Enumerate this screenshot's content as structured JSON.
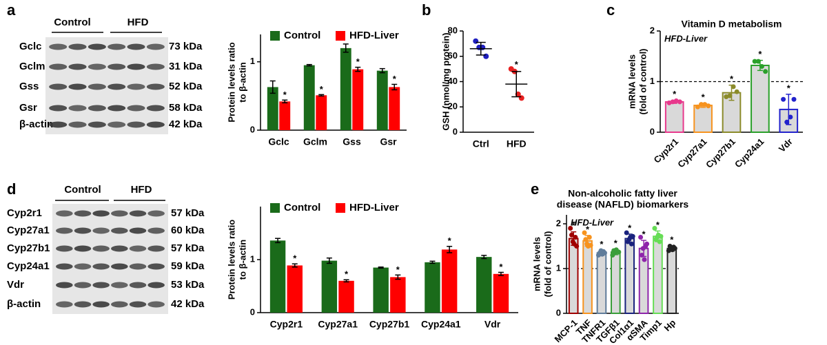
{
  "blots": [
    {
      "panel": "a",
      "groups": [
        "Control",
        "HFD"
      ],
      "proteins": [
        "Gclc",
        "Gclm",
        "Gss",
        "Gsr",
        "β-actin"
      ],
      "sizes": [
        "73 kDa",
        "31 kDa",
        "52 kDa",
        "58 kDa",
        "42 kDa"
      ]
    },
    {
      "panel": "d",
      "groups": [
        "Control",
        "HFD"
      ],
      "proteins": [
        "Cyp2r1",
        "Cyp27a1",
        "Cyp27b1",
        "Cyp24a1",
        "Vdr",
        "β-actin"
      ],
      "sizes": [
        "57 kDa",
        "60 kDa",
        "57 kDa",
        "59 kDa",
        "53 kDa",
        "42 kDa"
      ]
    }
  ],
  "chart_data": [
    {
      "type": "bar",
      "ylabel": [
        "Protein levels ratio",
        "to β-actin"
      ],
      "categories": [
        "Gclc",
        "Gclm",
        "Gss",
        "Gsr"
      ],
      "series": [
        {
          "name": "Control",
          "color": "#1a6b1a",
          "values": [
            0.63,
            0.95,
            1.2,
            0.87
          ],
          "errors": [
            0.09,
            0.01,
            0.06,
            0.03
          ]
        },
        {
          "name": "HFD-Liver",
          "color": "#ff0000",
          "values": [
            0.42,
            0.51,
            0.89,
            0.63
          ],
          "errors": [
            0.02,
            0.01,
            0.03,
            0.04
          ],
          "sig": [
            "*",
            "*",
            "*",
            "*"
          ]
        }
      ],
      "ylim": [
        0,
        1.4
      ],
      "yticks": [
        0,
        1
      ],
      "legend": "top"
    },
    {
      "type": "dot",
      "panel": "b",
      "ylabel": [
        "GSH (nmol/mg protein)"
      ],
      "categories": [
        "Ctrl",
        "HFD"
      ],
      "colors": [
        "#1f1fbf",
        "#e82020"
      ],
      "points": [
        [
          72,
          67,
          67,
          60
        ],
        [
          50,
          48,
          30,
          27
        ]
      ],
      "means": [
        66,
        38
      ],
      "errors": [
        5,
        10
      ],
      "sig": [
        null,
        "*"
      ],
      "ylim": [
        0,
        80
      ],
      "yticks": [
        0,
        20,
        40,
        60,
        80
      ]
    },
    {
      "type": "bar",
      "panel": "c",
      "title": [
        "Vitamin D metabolism"
      ],
      "annotation": "HFD-Liver",
      "ylabel": [
        "mRNA levels",
        "(fold of control)"
      ],
      "categories": [
        "Cyp2r1",
        "Cyp27a1",
        "Cyp27b1",
        "Cyp24a1",
        "Vdr"
      ],
      "colors": [
        "#e8388c",
        "#f7931e",
        "#8b8b2a",
        "#2aa02a",
        "#2222cc"
      ],
      "bar_fill": "#d9d9d9",
      "values": [
        0.6,
        0.53,
        0.78,
        1.32,
        0.45
      ],
      "errors": [
        0.03,
        0.04,
        0.15,
        0.1,
        0.3
      ],
      "points": [
        [
          0.58,
          0.6,
          0.62,
          0.6
        ],
        [
          0.5,
          0.55,
          0.55,
          0.52
        ],
        [
          0.7,
          0.72,
          0.9,
          0.8
        ],
        [
          1.4,
          1.4,
          1.3,
          1.2
        ],
        [
          0.65,
          0.2,
          0.3,
          0.65
        ]
      ],
      "sig": [
        "*",
        "*",
        "*",
        "*",
        "*"
      ],
      "reference_line": 1,
      "ylim": [
        0,
        2
      ],
      "yticks": [
        0,
        1,
        2
      ]
    },
    {
      "type": "bar",
      "ylabel": [
        "Protein levels ratio",
        "to β-actin"
      ],
      "categories": [
        "Cyp2r1",
        "Cyp27a1",
        "Cyp27b1",
        "Cyp24a1",
        "Vdr"
      ],
      "series": [
        {
          "name": "Control",
          "color": "#1a6b1a",
          "values": [
            1.36,
            0.98,
            0.85,
            0.95,
            1.05
          ],
          "errors": [
            0.04,
            0.05,
            0.01,
            0.02,
            0.03
          ]
        },
        {
          "name": "HFD-Liver",
          "color": "#ff0000",
          "values": [
            0.89,
            0.6,
            0.67,
            1.19,
            0.73
          ],
          "errors": [
            0.03,
            0.02,
            0.04,
            0.06,
            0.03
          ],
          "sig": [
            "*",
            "*",
            "*",
            "*",
            "*"
          ]
        }
      ],
      "ylim": [
        0,
        2
      ],
      "yticks": [
        0,
        1
      ],
      "legend": "top"
    },
    {
      "type": "bar",
      "panel": "e",
      "title": [
        "Non-alcoholic fatty liver",
        "disease (NAFLD) biomarkers"
      ],
      "annotation": "HFD-Liver",
      "ylabel": [
        "mRNA levels",
        "(fold of control)"
      ],
      "categories": [
        "MCP-1",
        "TNF",
        "TNFR1",
        "TGFβ1",
        "Col1α1",
        "αSMA",
        "Timp1",
        "Hp"
      ],
      "colors": [
        "#a00000",
        "#f7931e",
        "#607d9b",
        "#3a9e3a",
        "#1a237e",
        "#8e24aa",
        "#66dd55",
        "#222222"
      ],
      "bar_fill": "#d9d9d9",
      "values": [
        1.67,
        1.62,
        1.35,
        1.37,
        1.67,
        1.45,
        1.72,
        1.45
      ],
      "errors": [
        0.15,
        0.12,
        0.06,
        0.06,
        0.1,
        0.18,
        0.12,
        0.06
      ],
      "points": [
        [
          1.9,
          1.75,
          1.6,
          1.55,
          1.7,
          1.5
        ],
        [
          1.8,
          1.65,
          1.55,
          1.5,
          1.7,
          1.52
        ],
        [
          1.3,
          1.35,
          1.4,
          1.32,
          1.38,
          1.35
        ],
        [
          1.3,
          1.4,
          1.35,
          1.42,
          1.38,
          1.37
        ],
        [
          1.8,
          1.6,
          1.65,
          1.7,
          1.55,
          1.72
        ],
        [
          1.7,
          1.3,
          1.45,
          1.2,
          1.5,
          1.55
        ],
        [
          1.9,
          1.65,
          1.7,
          1.75,
          1.6,
          1.72
        ],
        [
          1.4,
          1.5,
          1.45,
          1.42,
          1.48,
          1.45
        ]
      ],
      "sig": [
        "*",
        "*",
        "*",
        "*",
        "*",
        "*",
        "*",
        "*"
      ],
      "reference_line": 1,
      "ylim": [
        0,
        2.2
      ],
      "yticks": [
        0,
        1,
        2
      ]
    }
  ]
}
